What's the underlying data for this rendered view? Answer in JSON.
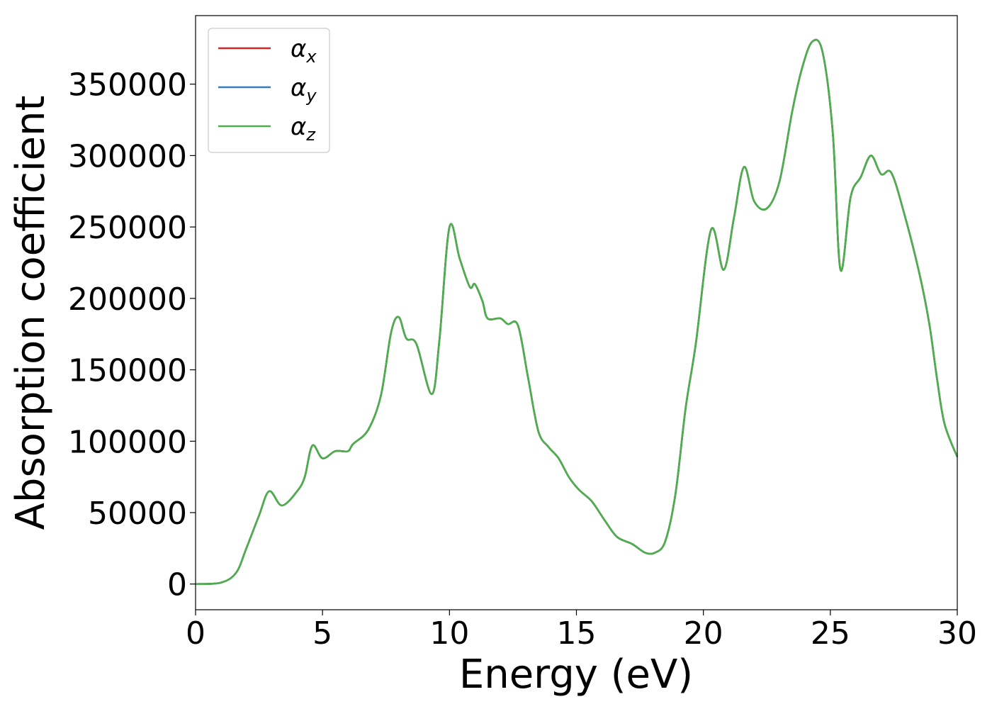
{
  "chart_data": {
    "type": "line",
    "xlabel": "Energy (eV)",
    "ylabel": "Absorption coefficient",
    "xlim": [
      0,
      30
    ],
    "ylim": [
      -18000,
      398000
    ],
    "xticks": [
      0,
      5,
      10,
      15,
      20,
      25,
      30
    ],
    "xtick_labels": [
      "0",
      "5",
      "10",
      "15",
      "20",
      "25",
      "30"
    ],
    "yticks": [
      0,
      50000,
      100000,
      150000,
      200000,
      250000,
      300000,
      350000
    ],
    "ytick_labels": [
      "0",
      "50000",
      "100000",
      "150000",
      "200000",
      "250000",
      "300000",
      "350000"
    ],
    "grid": false,
    "legend_position": "top-left",
    "x": [
      0,
      1,
      1.6,
      2,
      2.5,
      2.9,
      3.4,
      4,
      4.3,
      4.6,
      5,
      5.5,
      6,
      6.2,
      6.8,
      7.3,
      7.7,
      8,
      8.3,
      8.7,
      9.3,
      9.6,
      10,
      10.4,
      10.8,
      11,
      11.3,
      11.5,
      12,
      12.3,
      12.7,
      13.1,
      13.5,
      13.9,
      14.3,
      14.7,
      15.1,
      15.6,
      16.1,
      16.6,
      17.2,
      17.7,
      18.1,
      18.5,
      18.9,
      19.3,
      19.7,
      20.3,
      20.8,
      21.2,
      21.6,
      22,
      22.5,
      23,
      23.5,
      23.9,
      24.3,
      24.7,
      25.1,
      25.4,
      25.8,
      26.2,
      26.6,
      27,
      27.4,
      27.9,
      28.5,
      28.9,
      29.2,
      29.5,
      30
    ],
    "series": [
      {
        "name": "αx",
        "color": "#d62728",
        "values": [
          0,
          1000,
          8000,
          25000,
          48000,
          65000,
          55000,
          65000,
          75000,
          97000,
          88000,
          93000,
          93000,
          98000,
          108000,
          132000,
          176000,
          187000,
          172000,
          168000,
          133000,
          170000,
          250000,
          228000,
          208000,
          210000,
          198000,
          186000,
          186000,
          182000,
          181000,
          144000,
          107000,
          96000,
          88000,
          75000,
          66000,
          58000,
          45000,
          33000,
          28000,
          22000,
          22000,
          30000,
          63000,
          123000,
          168000,
          248000,
          220000,
          256000,
          292000,
          268000,
          263000,
          282000,
          331000,
          362000,
          380000,
          372000,
          315000,
          220000,
          271000,
          285000,
          300000,
          287000,
          288000,
          260000,
          218000,
          182000,
          144000,
          112000,
          89000
        ]
      },
      {
        "name": "αy",
        "color": "#377eb8",
        "values": [
          0,
          1000,
          8000,
          25000,
          48000,
          65000,
          55000,
          65000,
          75000,
          97000,
          88000,
          93000,
          93000,
          98000,
          108000,
          132000,
          176000,
          187000,
          172000,
          168000,
          133000,
          170000,
          250000,
          228000,
          208000,
          210000,
          198000,
          186000,
          186000,
          182000,
          181000,
          144000,
          107000,
          96000,
          88000,
          75000,
          66000,
          58000,
          45000,
          33000,
          28000,
          22000,
          22000,
          30000,
          63000,
          123000,
          168000,
          248000,
          220000,
          256000,
          292000,
          268000,
          263000,
          282000,
          331000,
          362000,
          380000,
          372000,
          315000,
          220000,
          271000,
          285000,
          300000,
          287000,
          288000,
          260000,
          218000,
          182000,
          144000,
          112000,
          89000
        ]
      },
      {
        "name": "αz",
        "color": "#4daf4a",
        "values": [
          0,
          1000,
          8000,
          25000,
          48000,
          65000,
          55000,
          65000,
          75000,
          97000,
          88000,
          93000,
          93000,
          98000,
          108000,
          132000,
          176000,
          187000,
          172000,
          168000,
          133000,
          170000,
          250000,
          228000,
          208000,
          210000,
          198000,
          186000,
          186000,
          182000,
          181000,
          144000,
          107000,
          96000,
          88000,
          75000,
          66000,
          58000,
          45000,
          33000,
          28000,
          22000,
          22000,
          30000,
          63000,
          123000,
          168000,
          248000,
          220000,
          256000,
          292000,
          268000,
          263000,
          282000,
          331000,
          362000,
          380000,
          372000,
          315000,
          220000,
          271000,
          285000,
          300000,
          287000,
          288000,
          260000,
          218000,
          182000,
          144000,
          112000,
          89000
        ]
      }
    ],
    "legend": [
      {
        "symbol": "α",
        "subscript": "x",
        "color": "#d62728"
      },
      {
        "symbol": "α",
        "subscript": "y",
        "color": "#377eb8"
      },
      {
        "symbol": "α",
        "subscript": "z",
        "color": "#4daf4a"
      }
    ]
  }
}
